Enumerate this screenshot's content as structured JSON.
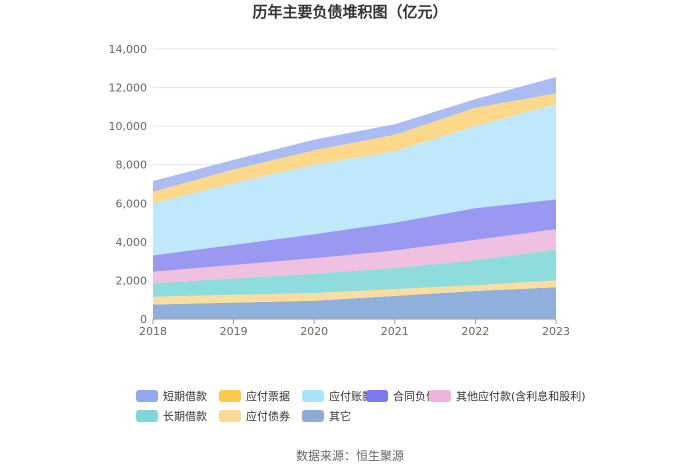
{
  "chart_data": {
    "type": "area",
    "stacked": true,
    "title": "历年主要负债堆积图（亿元）",
    "x": [
      "2018",
      "2019",
      "2020",
      "2021",
      "2022",
      "2023"
    ],
    "ylim": [
      0,
      14000
    ],
    "yticks": [
      "0",
      "2,000",
      "4,000",
      "6,000",
      "8,000",
      "10,000",
      "12,000",
      "14,000"
    ],
    "grid": true,
    "legend_position": "bottom",
    "series": [
      {
        "name": "其它",
        "color": "#8fb0dc",
        "values": [
          750,
          850,
          950,
          1200,
          1450,
          1650
        ]
      },
      {
        "name": "应付债券",
        "color": "#fbdda0",
        "values": [
          400,
          400,
          400,
          350,
          300,
          350
        ]
      },
      {
        "name": "长期借款",
        "color": "#8fdcdc",
        "values": [
          700,
          850,
          1000,
          1100,
          1300,
          1600
        ]
      },
      {
        "name": "其他应付款(含利息和股利)",
        "color": "#f0c0e0",
        "values": [
          600,
          700,
          800,
          900,
          1050,
          1050
        ]
      },
      {
        "name": "合同负债",
        "color": "#9a98f0",
        "values": [
          850,
          1050,
          1250,
          1450,
          1650,
          1550
        ]
      },
      {
        "name": "应付账款",
        "color": "#bfe8fb",
        "values": [
          2700,
          3200,
          3600,
          3700,
          4250,
          4950
        ]
      },
      {
        "name": "应付票据",
        "color": "#fcd88a",
        "values": [
          600,
          700,
          750,
          850,
          950,
          550
        ]
      },
      {
        "name": "短期借款",
        "color": "#aabcf2",
        "values": [
          550,
          500,
          550,
          550,
          450,
          850
        ]
      }
    ],
    "legend_order": [
      "短期借款",
      "应付票据",
      "应付账款",
      "合同负债",
      "其他应付款(含利息和股利)",
      "长期借款",
      "应付债券",
      "其它"
    ],
    "legend_colors": {
      "短期借款": "#8fa8f0",
      "应付票据": "#fcc94a",
      "应付账款": "#a8e2fb",
      "合同负债": "#7b79ee",
      "其他应付款(含利息和股利)": "#ecb6dc",
      "长期借款": "#7fd6d8",
      "应付债券": "#fbd79a",
      "其它": "#8eaad8"
    }
  },
  "source_text": "数据来源：恒生聚源"
}
